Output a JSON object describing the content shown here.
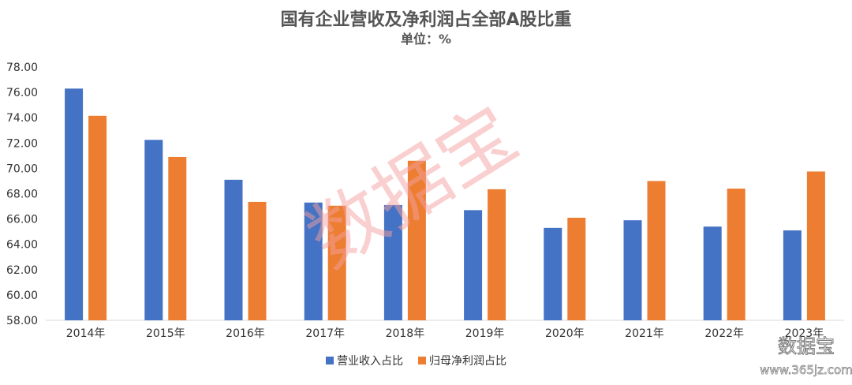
{
  "chart_data": {
    "type": "bar",
    "title": "国有企业营收及净利润占全部A股比重",
    "subtitle": "单位：%",
    "xlabel": "",
    "ylabel": "",
    "categories": [
      "2014年",
      "2015年",
      "2016年",
      "2017年",
      "2018年",
      "2019年",
      "2020年",
      "2021年",
      "2022年",
      "2023年"
    ],
    "series": [
      {
        "name": "营业收入占比",
        "color": "#4472C4",
        "values": [
          76.3,
          72.25,
          69.1,
          67.3,
          67.1,
          66.7,
          65.3,
          65.9,
          65.4,
          65.1
        ]
      },
      {
        "name": "归母净利润占比",
        "color": "#ED7D31",
        "values": [
          74.15,
          70.9,
          67.35,
          67.05,
          70.6,
          68.35,
          66.1,
          69.0,
          68.4,
          69.75
        ]
      }
    ],
    "ylim": [
      58,
      78
    ],
    "yticks": [
      "58.00",
      "60.00",
      "62.00",
      "64.00",
      "66.00",
      "68.00",
      "70.00",
      "72.00",
      "74.00",
      "76.00",
      "78.00"
    ],
    "grid": false,
    "legend_position": "bottom-center"
  },
  "watermark": {
    "center_text": "数据宝",
    "corner_text": "数据宝",
    "corner_url": "www.365jz.com",
    "color": "#F4A0A0"
  }
}
